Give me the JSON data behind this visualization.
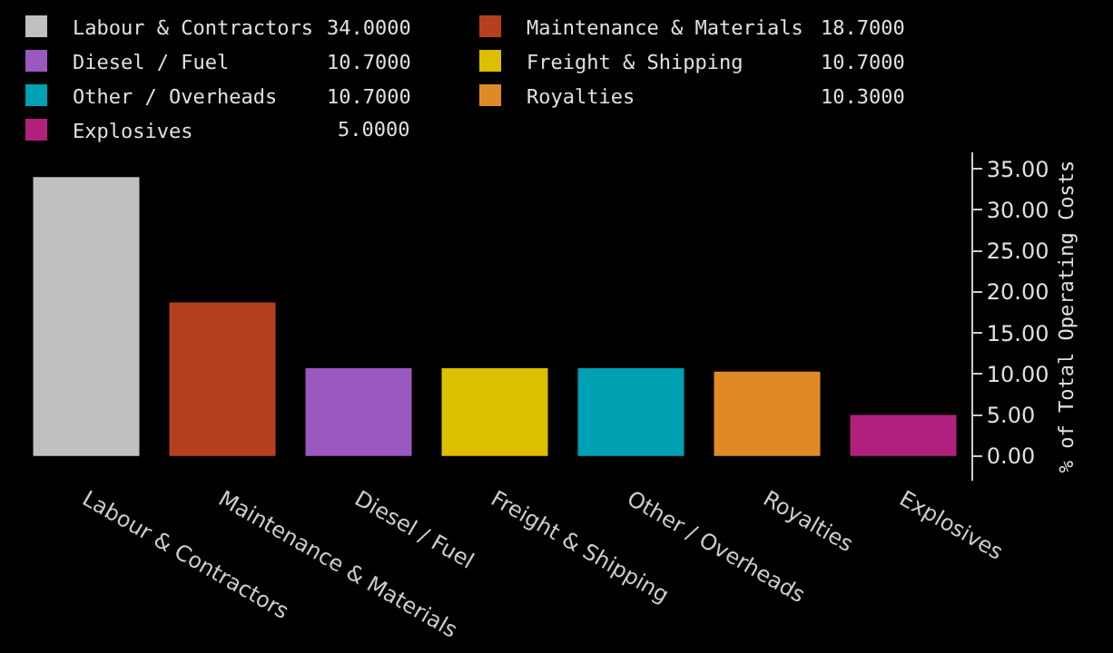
{
  "chart_data": {
    "type": "bar",
    "ylabel": "% of Total Operating Costs",
    "categories": [
      "Labour & Contractors",
      "Maintenance & Materials",
      "Diesel / Fuel",
      "Freight & Shipping",
      "Other / Overheads",
      "Royalties",
      "Explosives"
    ],
    "series": [
      {
        "name": "Labour & Contractors",
        "color": "#c0c0c0",
        "values": [
          34.0,
          null,
          null,
          null,
          null,
          null,
          null
        ]
      },
      {
        "name": "Maintenance & Materials",
        "color": "#b5401e",
        "values": [
          null,
          18.7,
          null,
          null,
          null,
          null,
          null
        ]
      },
      {
        "name": "Diesel / Fuel",
        "color": "#9b59c0",
        "values": [
          null,
          null,
          10.7,
          null,
          null,
          null,
          null
        ]
      },
      {
        "name": "Freight & Shipping",
        "color": "#dcc000",
        "values": [
          null,
          null,
          null,
          10.7,
          null,
          null,
          null
        ]
      },
      {
        "name": "Other / Overheads",
        "color": "#00a0b4",
        "values": [
          null,
          null,
          null,
          null,
          10.7,
          null,
          null
        ]
      },
      {
        "name": "Royalties",
        "color": "#e08a26",
        "values": [
          null,
          null,
          null,
          null,
          null,
          10.3,
          null
        ]
      },
      {
        "name": "Explosives",
        "color": "#b0207c",
        "values": [
          null,
          null,
          null,
          null,
          null,
          null,
          5.0
        ]
      }
    ],
    "annotations": [
      "34.0000",
      "18.7000",
      "10.7000",
      "10.7000",
      "10.7000",
      "10.3000",
      "5.0000"
    ],
    "ylim": [
      -3,
      37
    ],
    "yticks": [
      {
        "value": 0,
        "label": "0.00"
      },
      {
        "value": 5,
        "label": "5.00"
      },
      {
        "value": 10,
        "label": "10.00"
      },
      {
        "value": 15,
        "label": "15.00"
      },
      {
        "value": 20,
        "label": "20.00"
      },
      {
        "value": 25,
        "label": "25.00"
      },
      {
        "value": 30,
        "label": "30.00"
      },
      {
        "value": 35,
        "label": "35.00"
      }
    ],
    "grid": false,
    "legend": "top left"
  }
}
